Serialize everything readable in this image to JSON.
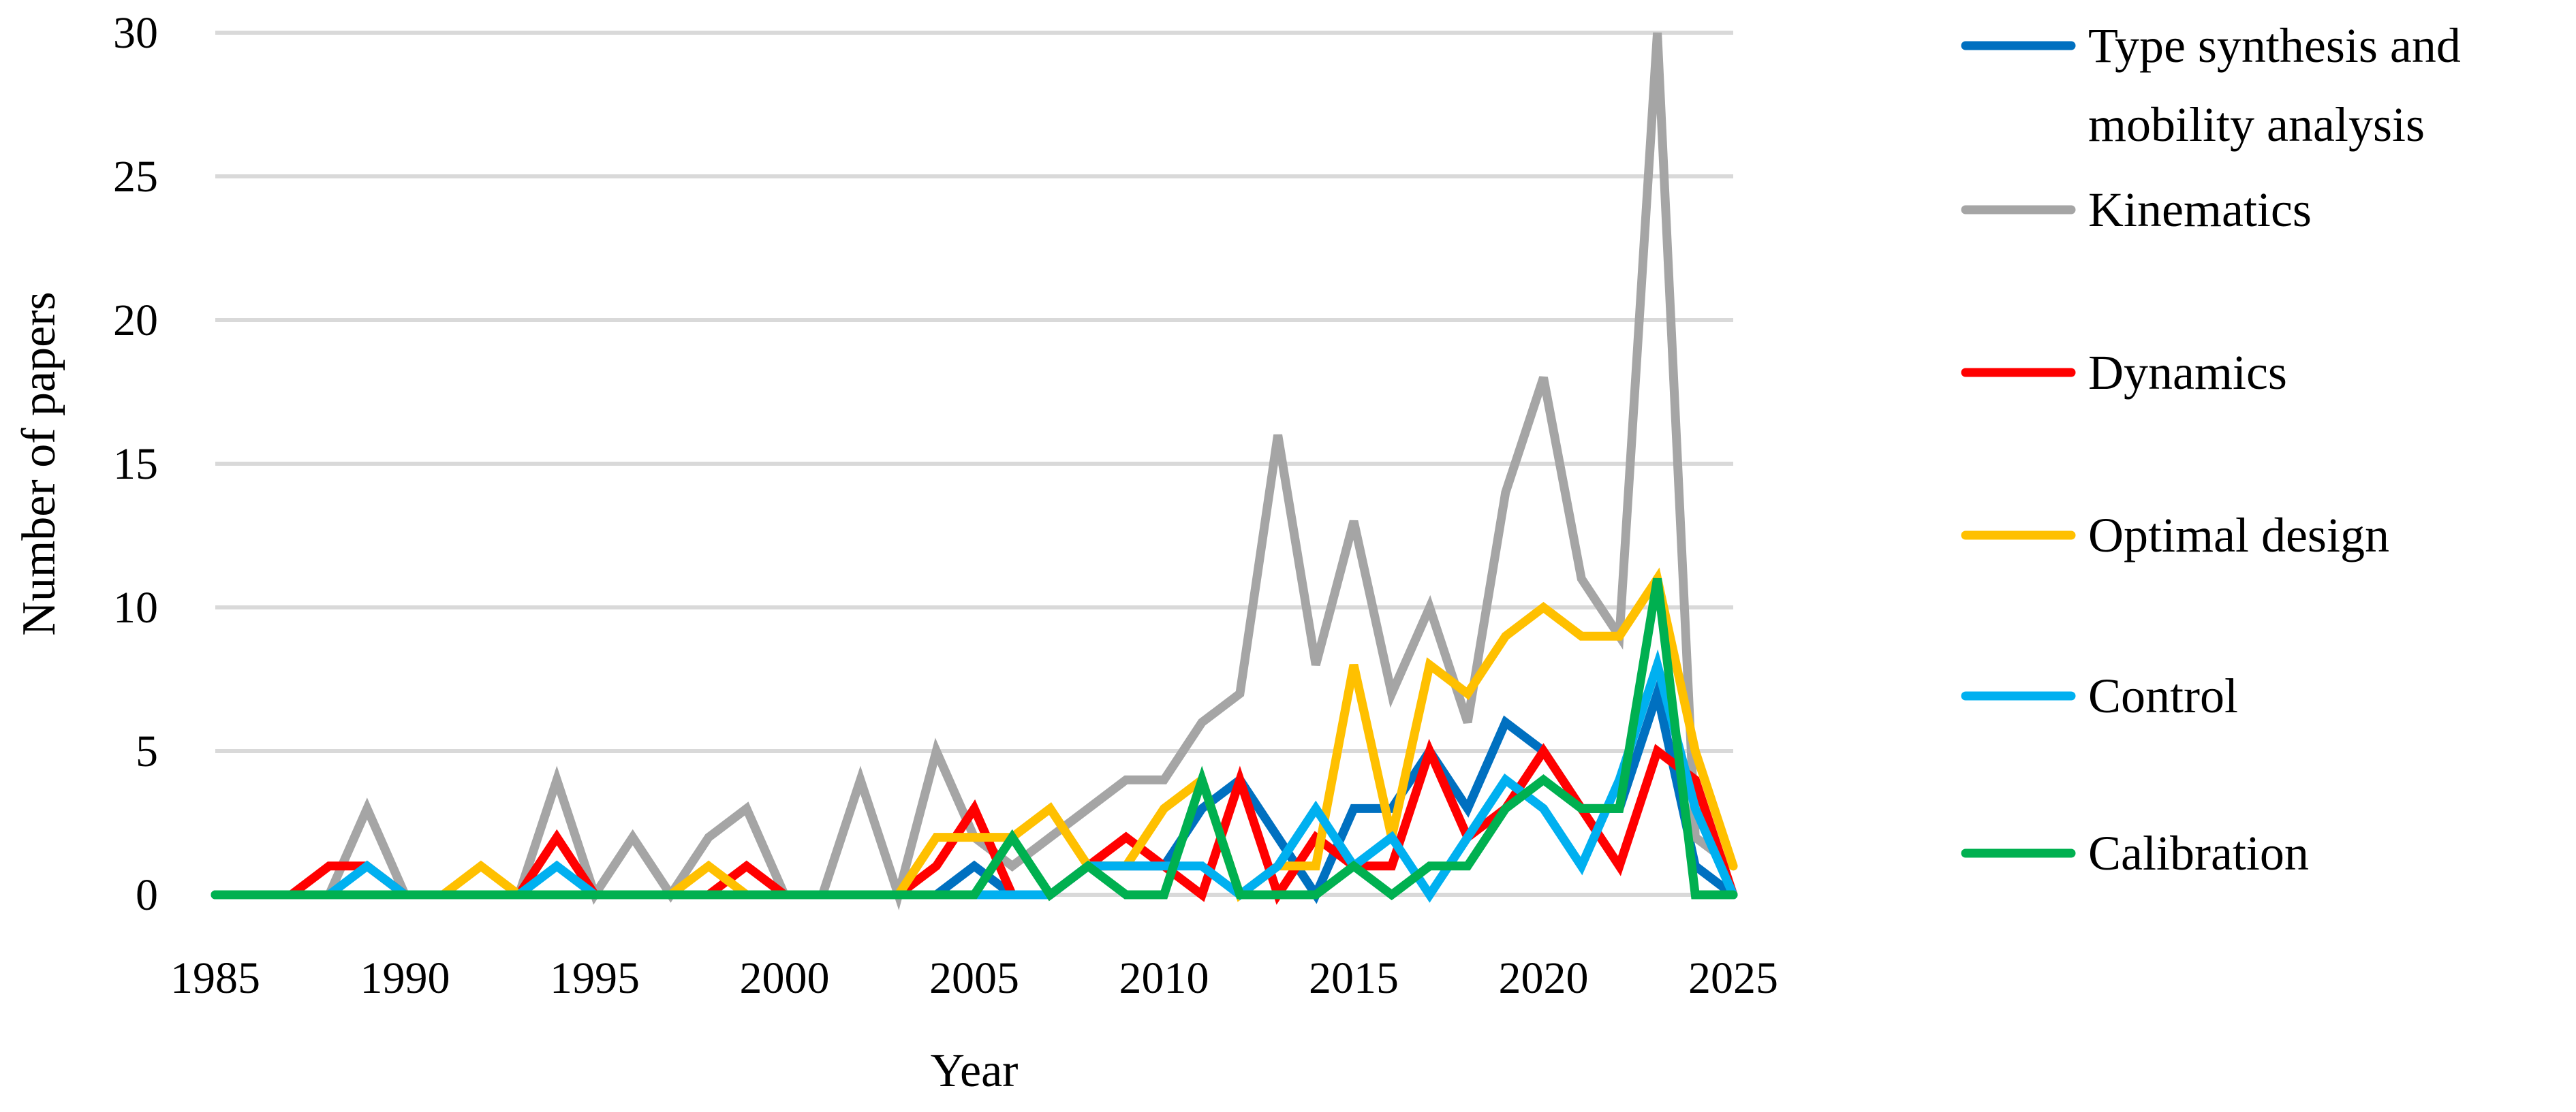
{
  "chart_data": {
    "type": "line",
    "title": "",
    "xlabel": "Year",
    "ylabel": "Number of papers",
    "xlim": [
      1985,
      2025
    ],
    "ylim": [
      0,
      30
    ],
    "xticks": [
      1985,
      1990,
      1995,
      2000,
      2005,
      2010,
      2015,
      2020,
      2025
    ],
    "yticks": [
      0,
      5,
      10,
      15,
      20,
      25,
      30
    ],
    "grid": "horizontal",
    "legend_position": "right",
    "x": [
      1985,
      1986,
      1987,
      1988,
      1989,
      1990,
      1991,
      1992,
      1993,
      1994,
      1995,
      1996,
      1997,
      1998,
      1999,
      2000,
      2001,
      2002,
      2003,
      2004,
      2005,
      2006,
      2007,
      2008,
      2009,
      2010,
      2011,
      2012,
      2013,
      2014,
      2015,
      2016,
      2017,
      2018,
      2019,
      2020,
      2021,
      2022,
      2023,
      2024,
      2025
    ],
    "series": [
      {
        "name": [
          "Type synthesis and",
          "mobility analysis"
        ],
        "color": "#0070C0",
        "values": [
          0,
          0,
          0,
          0,
          0,
          0,
          0,
          0,
          0,
          0,
          0,
          0,
          0,
          0,
          0,
          0,
          0,
          0,
          0,
          0,
          1,
          0,
          0,
          1,
          1,
          1,
          3,
          4,
          2,
          0,
          3,
          3,
          5,
          3,
          6,
          5,
          3,
          3,
          7,
          1,
          0
        ]
      },
      {
        "name": [
          "Kinematics"
        ],
        "color": "#A5A5A5",
        "values": [
          0,
          0,
          0,
          0,
          3,
          0,
          0,
          0,
          0,
          4,
          0,
          2,
          0,
          2,
          3,
          0,
          0,
          4,
          0,
          5,
          2,
          1,
          2,
          3,
          4,
          4,
          6,
          7,
          16,
          8,
          13,
          7,
          10,
          6,
          14,
          18,
          11,
          9,
          30,
          2,
          1
        ]
      },
      {
        "name": [
          "Dynamics"
        ],
        "color": "#FF0000",
        "values": [
          0,
          0,
          0,
          1,
          1,
          0,
          0,
          0,
          0,
          2,
          0,
          0,
          0,
          0,
          1,
          0,
          0,
          0,
          0,
          1,
          3,
          0,
          0,
          1,
          2,
          1,
          0,
          4,
          0,
          2,
          1,
          1,
          5,
          2,
          3,
          5,
          3,
          1,
          5,
          4,
          0
        ]
      },
      {
        "name": [
          "Optimal design"
        ],
        "color": "#FFC000",
        "values": [
          0,
          0,
          0,
          0,
          0,
          0,
          0,
          1,
          0,
          0,
          0,
          0,
          0,
          1,
          0,
          0,
          0,
          0,
          0,
          2,
          2,
          2,
          3,
          1,
          1,
          3,
          4,
          0,
          1,
          1,
          8,
          2,
          8,
          7,
          9,
          10,
          9,
          9,
          11,
          5,
          1
        ]
      },
      {
        "name": [
          "Control"
        ],
        "color": "#00B0F0",
        "values": [
          0,
          0,
          0,
          0,
          1,
          0,
          0,
          0,
          0,
          1,
          0,
          0,
          0,
          0,
          0,
          0,
          0,
          0,
          0,
          0,
          0,
          0,
          0,
          1,
          1,
          1,
          1,
          0,
          1,
          3,
          1,
          2,
          0,
          2,
          4,
          3,
          1,
          4,
          8,
          3,
          0
        ]
      },
      {
        "name": [
          "Calibration"
        ],
        "color": "#00B050",
        "values": [
          0,
          0,
          0,
          0,
          0,
          0,
          0,
          0,
          0,
          0,
          0,
          0,
          0,
          0,
          0,
          0,
          0,
          0,
          0,
          0,
          0,
          2,
          0,
          1,
          0,
          0,
          4,
          0,
          0,
          0,
          1,
          0,
          1,
          1,
          3,
          4,
          3,
          3,
          11,
          0,
          0
        ]
      }
    ]
  }
}
